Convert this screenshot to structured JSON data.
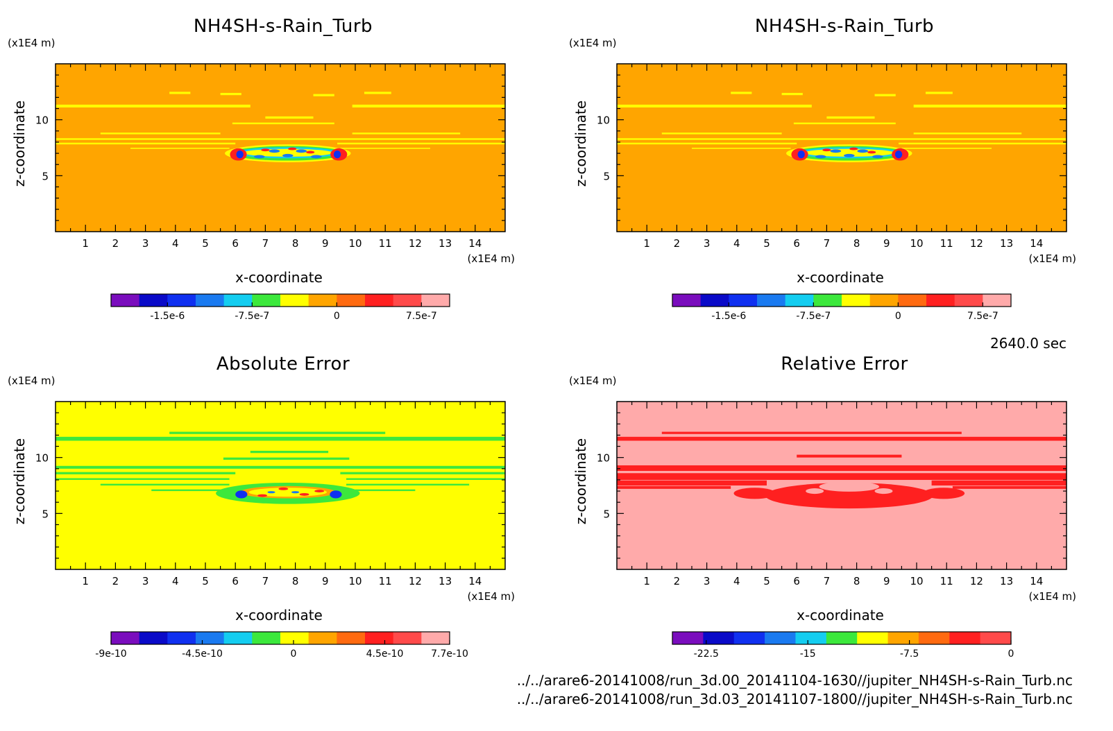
{
  "colors": {
    "background": "#ffffff",
    "frame": "#000000",
    "palette_main": [
      "#7a0dbd",
      "#0a0ac8",
      "#1030f0",
      "#1a7af0",
      "#14cdf0",
      "#3ce83c",
      "#ffff00",
      "#ffa500",
      "#ff6a10",
      "#ff2020",
      "#ff4a4a",
      "#ffaaaa"
    ],
    "palette_rel": [
      "#7a0dbd",
      "#0a0ac8",
      "#1030f0",
      "#1a7af0",
      "#14cdf0",
      "#3ce83c",
      "#ffff00",
      "#ffa500",
      "#ff6a10",
      "#ff2020",
      "#ff4a4a"
    ]
  },
  "time_label": "2640.0 sec",
  "file_paths": [
    "../../arare6-20141008/run_3d.00_20141104-1630//jupiter_NH4SH-s-Rain_Turb.nc",
    "../../arare6-20141008/run_3d.03_20141107-1800//jupiter_NH4SH-s-Rain_Turb.nc"
  ],
  "chart_data": [
    {
      "type": "heatmap",
      "title": "NH4SH-s-Rain_Turb",
      "xlabel": "x-coordinate",
      "ylabel": "z-coordinate",
      "x_unit": "(x1E4 m)",
      "y_unit": "(x1E4 m)",
      "xlim": [
        0,
        15
      ],
      "ylim": [
        0,
        15
      ],
      "x_ticks": [
        1,
        2,
        3,
        4,
        5,
        6,
        7,
        8,
        9,
        10,
        11,
        12,
        13,
        14
      ],
      "y_ticks": [
        5,
        10
      ],
      "field": "main",
      "colorbar": {
        "levels": 12,
        "ticks": [
          {
            "v": -1.5e-06,
            "label": "-1.5e-6"
          },
          {
            "v": -7.5e-07,
            "label": "-7.5e-7"
          },
          {
            "v": 0,
            "label": "0"
          },
          {
            "v": 7.5e-07,
            "label": "7.5e-7"
          }
        ],
        "range": [
          -2e-06,
          1e-06
        ]
      }
    },
    {
      "type": "heatmap",
      "title": "NH4SH-s-Rain_Turb",
      "xlabel": "x-coordinate",
      "ylabel": "z-coordinate",
      "x_unit": "(x1E4 m)",
      "y_unit": "(x1E4 m)",
      "xlim": [
        0,
        15
      ],
      "ylim": [
        0,
        15
      ],
      "x_ticks": [
        1,
        2,
        3,
        4,
        5,
        6,
        7,
        8,
        9,
        10,
        11,
        12,
        13,
        14
      ],
      "y_ticks": [
        5,
        10
      ],
      "field": "main",
      "colorbar": {
        "levels": 12,
        "ticks": [
          {
            "v": -1.5e-06,
            "label": "-1.5e-6"
          },
          {
            "v": -7.5e-07,
            "label": "-7.5e-7"
          },
          {
            "v": 0,
            "label": "0"
          },
          {
            "v": 7.5e-07,
            "label": "7.5e-7"
          }
        ],
        "range": [
          -2e-06,
          1e-06
        ]
      }
    },
    {
      "type": "heatmap",
      "title": "Absolute Error",
      "xlabel": "x-coordinate",
      "ylabel": "z-coordinate",
      "x_unit": "(x1E4 m)",
      "y_unit": "(x1E4 m)",
      "xlim": [
        0,
        15
      ],
      "ylim": [
        0,
        15
      ],
      "x_ticks": [
        1,
        2,
        3,
        4,
        5,
        6,
        7,
        8,
        9,
        10,
        11,
        12,
        13,
        14
      ],
      "y_ticks": [
        5,
        10
      ],
      "field": "abs",
      "colorbar": {
        "levels": 12,
        "ticks": [
          {
            "v": -9e-10,
            "label": "-9e-10"
          },
          {
            "v": -4.5e-10,
            "label": "-4.5e-10"
          },
          {
            "v": 0,
            "label": "0"
          },
          {
            "v": 4.5e-10,
            "label": "4.5e-10"
          },
          {
            "v": 7.7e-10,
            "label": "7.7e-10"
          }
        ],
        "range": [
          -9e-10,
          7.7e-10
        ]
      }
    },
    {
      "type": "heatmap",
      "title": "Relative Error",
      "xlabel": "x-coordinate",
      "ylabel": "z-coordinate",
      "x_unit": "(x1E4 m)",
      "y_unit": "(x1E4 m)",
      "xlim": [
        0,
        15
      ],
      "ylim": [
        0,
        15
      ],
      "x_ticks": [
        1,
        2,
        3,
        4,
        5,
        6,
        7,
        8,
        9,
        10,
        11,
        12,
        13,
        14
      ],
      "y_ticks": [
        5,
        10
      ],
      "field": "rel",
      "colorbar": {
        "levels": 11,
        "ticks": [
          {
            "v": -22.5,
            "label": "-22.5"
          },
          {
            "v": -15,
            "label": "-15"
          },
          {
            "v": -7.5,
            "label": "-7.5"
          },
          {
            "v": 0,
            "label": "0"
          }
        ],
        "range": [
          -25,
          0
        ]
      }
    }
  ]
}
